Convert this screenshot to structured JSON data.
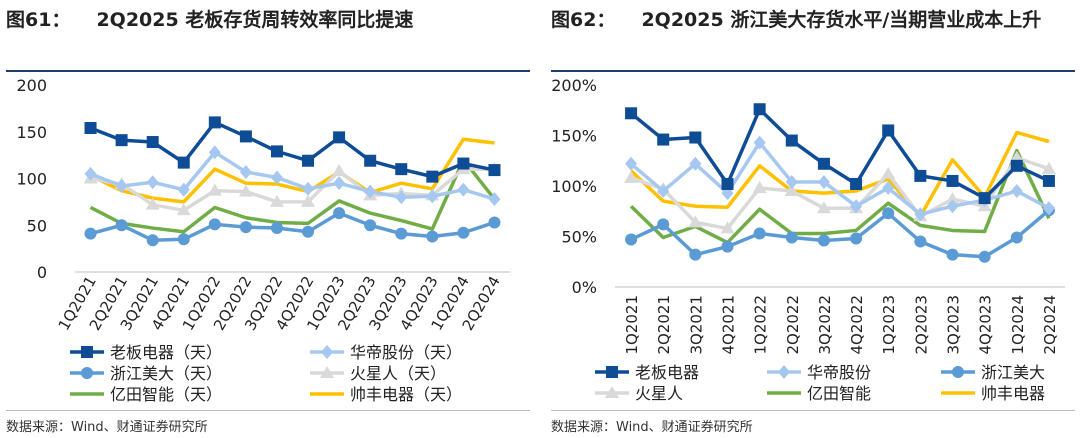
{
  "charts": [
    {
      "figure_number": "图61：",
      "title": "2Q2025 老板存货周转效率同比提速",
      "source": "数据来源：Wind、财通证券研究所"
    },
    {
      "figure_number": "图62：",
      "title": "2Q2025 浙江美大存货水平/当期营业成本上升",
      "source": "数据来源：Wind、财通证券研究所"
    }
  ],
  "chart_data": [
    {
      "type": "line",
      "title": "2Q2025 老板存货周转效率同比提速",
      "categories": [
        "1Q2021",
        "2Q2021",
        "3Q2021",
        "4Q2021",
        "1Q2022",
        "2Q2022",
        "3Q2022",
        "4Q2022",
        "1Q2023",
        "2Q2023",
        "3Q2023",
        "4Q2023",
        "1Q2024",
        "2Q2024"
      ],
      "ylim": [
        0,
        200
      ],
      "yticks": [
        0,
        50,
        100,
        150,
        200
      ],
      "ytick_labels": [
        "0",
        "50",
        "100",
        "150",
        "200"
      ],
      "series": [
        {
          "name": "老板电器（天）",
          "color": "#0e4c96",
          "marker": "square",
          "values": [
            154,
            141,
            139,
            117,
            160,
            145,
            129,
            119,
            144,
            119,
            110,
            102,
            116,
            109
          ]
        },
        {
          "name": "华帝股份（天）",
          "color": "#a6c8f0",
          "marker": "diamond",
          "values": [
            105,
            92,
            96,
            88,
            128,
            107,
            101,
            89,
            95,
            86,
            80,
            81,
            88,
            78
          ]
        },
        {
          "name": "浙江美大（天）",
          "color": "#5b9bd5",
          "marker": "circle",
          "values": [
            41,
            50,
            34,
            35,
            51,
            48,
            47,
            43,
            63,
            50,
            41,
            38,
            42,
            53
          ]
        },
        {
          "name": "火星人（天）",
          "color": "#d9d9d9",
          "marker": "triangle",
          "values": [
            100,
            94,
            72,
            66,
            87,
            86,
            75,
            75,
            108,
            82,
            84,
            82,
            110,
            110
          ]
        },
        {
          "name": "亿田智能（天）",
          "color": "#70ad47",
          "marker": "none",
          "values": [
            69,
            52,
            47,
            43,
            69,
            58,
            53,
            52,
            76,
            63,
            55,
            46,
            120,
            78
          ]
        },
        {
          "name": "帅丰电器（天）",
          "color": "#ffc000",
          "marker": "none",
          "values": [
            103,
            87,
            79,
            75,
            110,
            95,
            94,
            86,
            107,
            85,
            95,
            89,
            142,
            138
          ]
        }
      ]
    },
    {
      "type": "line",
      "title": "2Q2025 浙江美大存货水平/当期营业成本上升",
      "categories": [
        "1Q2021",
        "2Q2021",
        "3Q2021",
        "4Q2021",
        "1Q2022",
        "2Q2022",
        "3Q2022",
        "4Q2022",
        "1Q2023",
        "2Q2023",
        "3Q2023",
        "4Q2023",
        "1Q2024",
        "2Q2024"
      ],
      "ylim": [
        0,
        200
      ],
      "yticks": [
        0,
        50,
        100,
        150,
        200
      ],
      "ytick_labels": [
        "0%",
        "50%",
        "100%",
        "150%",
        "200%"
      ],
      "series": [
        {
          "name": "老板电器",
          "color": "#0e4c96",
          "marker": "square",
          "values": [
            172,
            146,
            148,
            102,
            176,
            145,
            122,
            102,
            155,
            110,
            105,
            88,
            120,
            105
          ]
        },
        {
          "name": "华帝股份",
          "color": "#a6c8f0",
          "marker": "diamond",
          "values": [
            122,
            95,
            122,
            93,
            143,
            104,
            104,
            80,
            98,
            72,
            80,
            86,
            95,
            78
          ]
        },
        {
          "name": "浙江美大",
          "color": "#5b9bd5",
          "marker": "circle",
          "values": [
            47,
            62,
            32,
            40,
            53,
            49,
            46,
            48,
            73,
            45,
            32,
            30,
            49,
            76
          ]
        },
        {
          "name": "火星人",
          "color": "#d9d9d9",
          "marker": "triangle",
          "values": [
            108,
            97,
            64,
            58,
            98,
            95,
            78,
            78,
            112,
            70,
            87,
            80,
            128,
            117
          ]
        },
        {
          "name": "亿田智能",
          "color": "#70ad47",
          "marker": "none",
          "values": [
            80,
            49,
            60,
            44,
            77,
            53,
            53,
            56,
            83,
            61,
            56,
            55,
            135,
            68
          ]
        },
        {
          "name": "帅丰电器",
          "color": "#ffc000",
          "marker": "none",
          "values": [
            115,
            85,
            80,
            79,
            120,
            95,
            93,
            95,
            107,
            70,
            126,
            89,
            153,
            144
          ]
        }
      ]
    }
  ]
}
